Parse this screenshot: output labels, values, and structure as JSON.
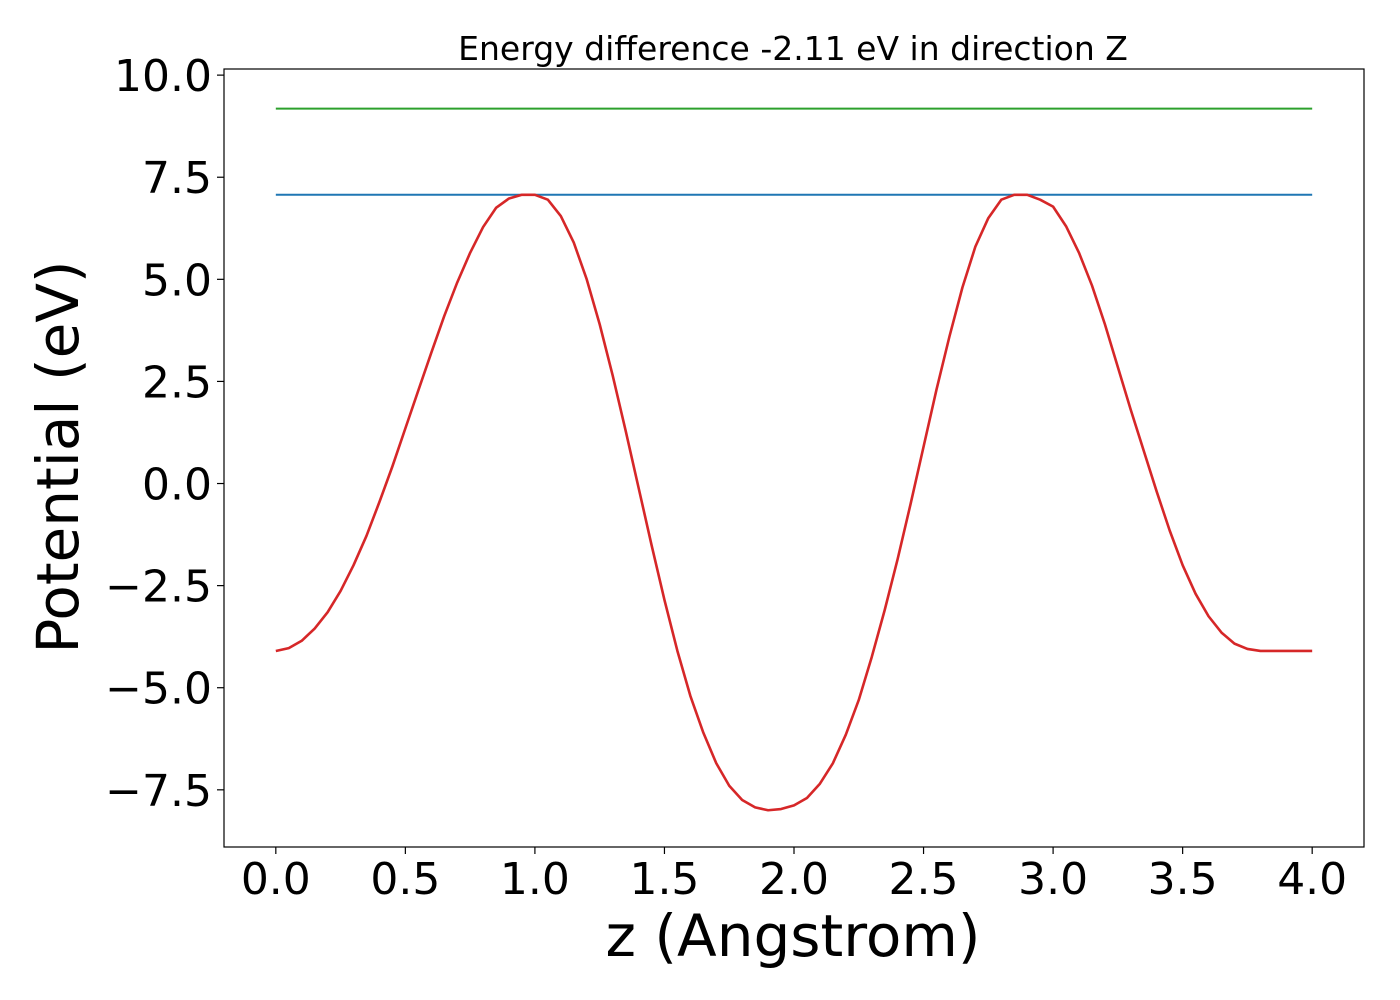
{
  "chart_data": {
    "type": "line",
    "title": "Energy difference -2.11 eV in direction Z",
    "xlabel": "z (Angstrom)",
    "ylabel": "Potential (eV)",
    "xlim": [
      -0.2,
      4.2
    ],
    "ylim": [
      -8.9,
      10.15
    ],
    "grid": false,
    "x_ticks": [
      0.0,
      0.5,
      1.0,
      1.5,
      2.0,
      2.5,
      3.0,
      3.5,
      4.0
    ],
    "x_tick_labels": [
      "0.0",
      "0.5",
      "1.0",
      "1.5",
      "2.0",
      "2.5",
      "3.0",
      "3.5",
      "4.0"
    ],
    "y_ticks": [
      -7.5,
      -5.0,
      -2.5,
      0.0,
      2.5,
      5.0,
      7.5,
      10.0
    ],
    "y_tick_labels": [
      "−7.5",
      "−5.0",
      "−2.5",
      "0.0",
      "2.5",
      "5.0",
      "7.5",
      "10.0"
    ],
    "series": [
      {
        "color": "#1f77b4",
        "style": "horizontal",
        "x": [
          0.0,
          4.0
        ],
        "y": [
          7.07,
          7.07
        ]
      },
      {
        "color": "#2ca02c",
        "style": "horizontal",
        "x": [
          0.0,
          4.0
        ],
        "y": [
          9.18,
          9.18
        ]
      },
      {
        "color": "#d62728",
        "style": "curve",
        "x": [
          0.0,
          0.05,
          0.1,
          0.15,
          0.2,
          0.25,
          0.3,
          0.35,
          0.4,
          0.45,
          0.5,
          0.55,
          0.6,
          0.65,
          0.7,
          0.75,
          0.8,
          0.85,
          0.9,
          0.95,
          1.0,
          1.05,
          1.1,
          1.15,
          1.2,
          1.25,
          1.3,
          1.35,
          1.4,
          1.45,
          1.5,
          1.55,
          1.6,
          1.65,
          1.7,
          1.75,
          1.8,
          1.85,
          1.9,
          1.95,
          2.0,
          2.05,
          2.1,
          2.15,
          2.2,
          2.25,
          2.3,
          2.35,
          2.4,
          2.45,
          2.5,
          2.55,
          2.6,
          2.65,
          2.7,
          2.75,
          2.8,
          2.85,
          2.9,
          2.95,
          3.0,
          3.05,
          3.1,
          3.15,
          3.2,
          3.25,
          3.3,
          3.35,
          3.4,
          3.45,
          3.5,
          3.55,
          3.6,
          3.65,
          3.7,
          3.75,
          3.8,
          3.85,
          3.9,
          3.95,
          4.0
        ],
        "y": [
          -4.1,
          -4.03,
          -3.85,
          -3.55,
          -3.15,
          -2.63,
          -2.0,
          -1.28,
          -0.45,
          0.42,
          1.35,
          2.28,
          3.2,
          4.1,
          4.92,
          5.65,
          6.28,
          6.75,
          6.98,
          7.07,
          7.07,
          6.95,
          6.55,
          5.9,
          5.0,
          3.9,
          2.65,
          1.3,
          -0.1,
          -1.5,
          -2.85,
          -4.1,
          -5.2,
          -6.1,
          -6.85,
          -7.4,
          -7.75,
          -7.93,
          -8.0,
          -7.97,
          -7.88,
          -7.7,
          -7.35,
          -6.85,
          -6.15,
          -5.3,
          -4.25,
          -3.1,
          -1.85,
          -0.5,
          0.9,
          2.3,
          3.6,
          4.8,
          5.8,
          6.5,
          6.95,
          7.07,
          7.07,
          6.95,
          6.78,
          6.3,
          5.65,
          4.85,
          3.9,
          2.85,
          1.8,
          0.8,
          -0.2,
          -1.15,
          -2.0,
          -2.7,
          -3.25,
          -3.65,
          -3.92,
          -4.05,
          -4.1,
          -4.1,
          -4.1,
          -4.1,
          -4.1
        ]
      }
    ]
  }
}
